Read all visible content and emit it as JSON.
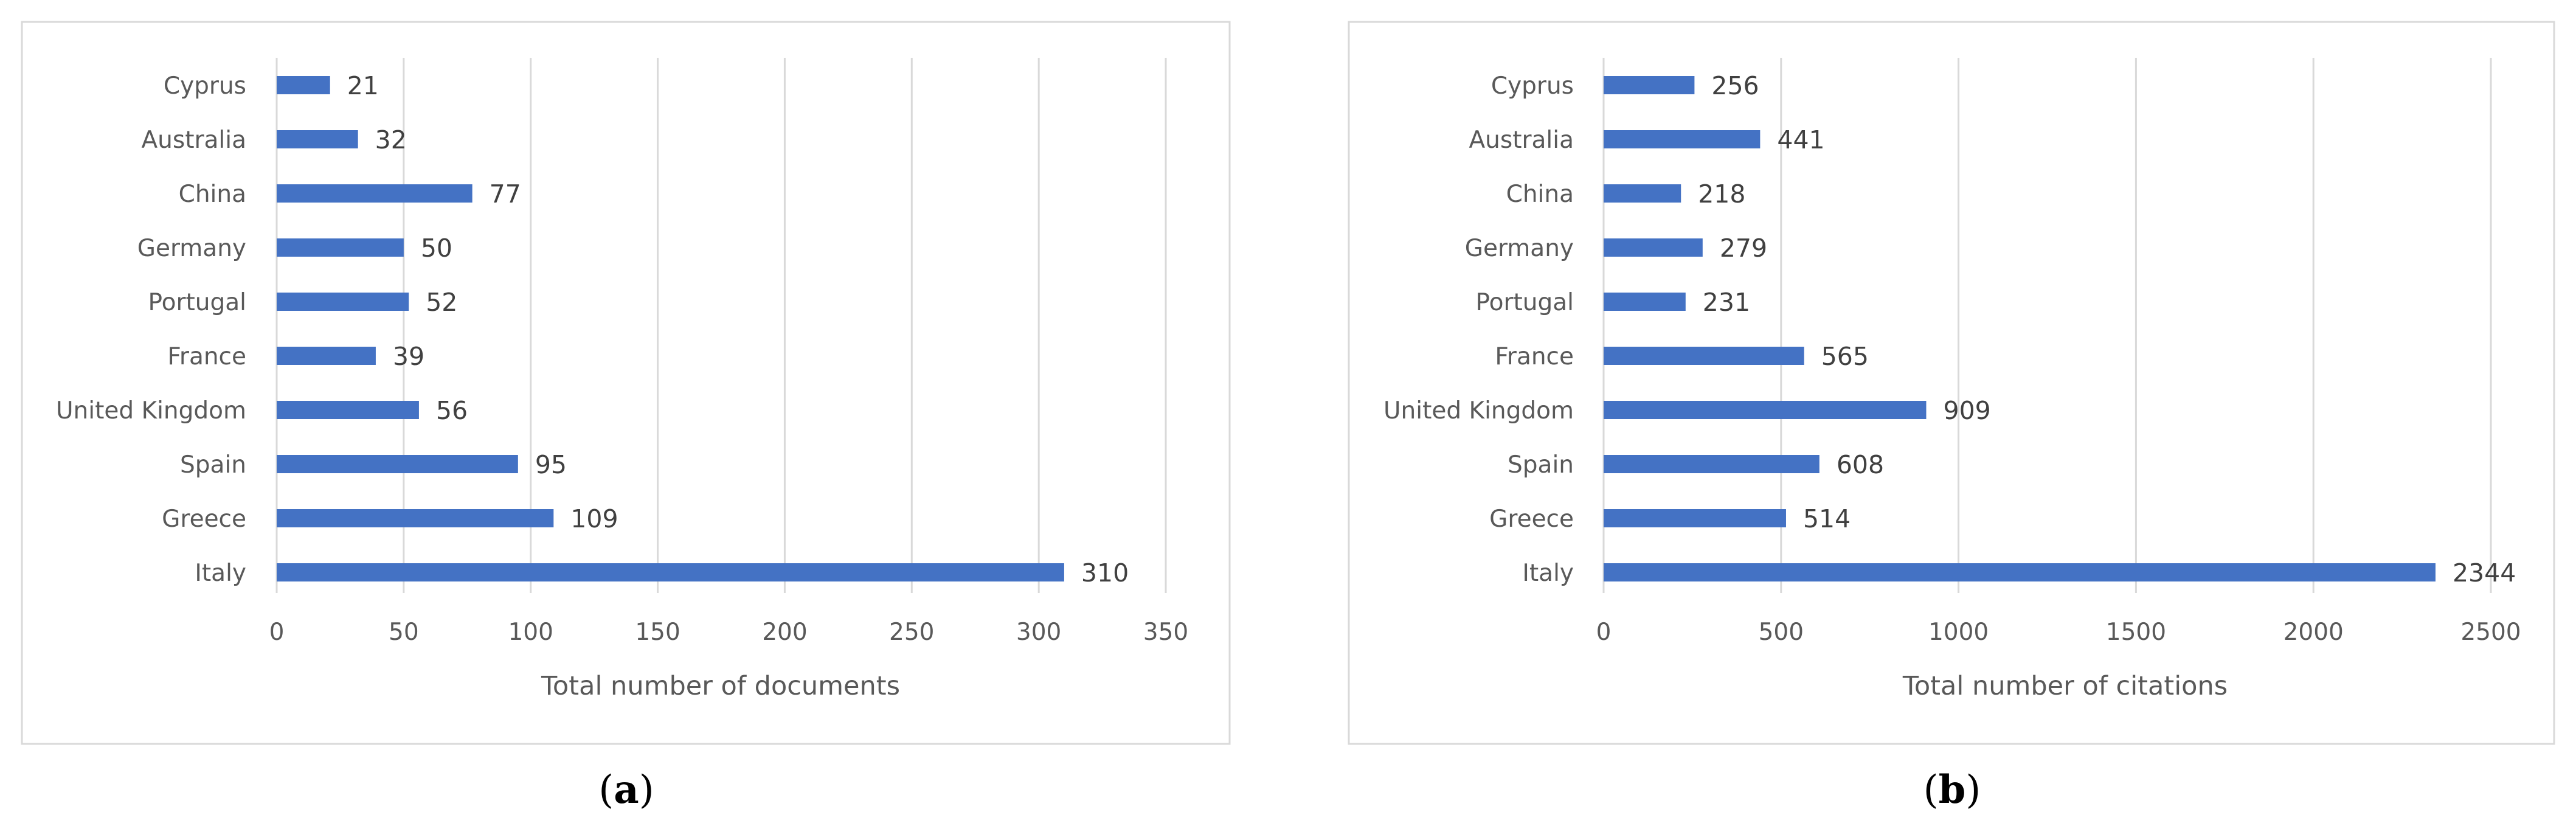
{
  "panels": [
    {
      "label_open": "(",
      "label_letter": "a",
      "label_close": ")"
    },
    {
      "label_open": "(",
      "label_letter": "b",
      "label_close": ")"
    }
  ],
  "colors": {
    "bar": "#4472C4",
    "grid": "#d9d9d9",
    "frame": "#d9d9d9"
  },
  "chart_data": [
    {
      "type": "bar",
      "orientation": "horizontal",
      "categories": [
        "Cyprus",
        "Australia",
        "China",
        "Germany",
        "Portugal",
        "France",
        "United Kingdom",
        "Spain",
        "Greece",
        "Italy"
      ],
      "values": [
        21,
        32,
        77,
        50,
        52,
        39,
        56,
        95,
        109,
        310
      ],
      "xlabel": "Total number of documents",
      "ylabel": "",
      "xlim": [
        0,
        350
      ],
      "xticks": [
        0,
        50,
        100,
        150,
        200,
        250,
        300,
        350
      ],
      "grid": "vertical",
      "data_labels": true
    },
    {
      "type": "bar",
      "orientation": "horizontal",
      "categories": [
        "Cyprus",
        "Australia",
        "China",
        "Germany",
        "Portugal",
        "France",
        "United Kingdom",
        "Spain",
        "Greece",
        "Italy"
      ],
      "values": [
        256,
        441,
        218,
        279,
        231,
        565,
        909,
        608,
        514,
        2344
      ],
      "xlabel": "Total number of citations",
      "ylabel": "",
      "xlim": [
        0,
        2500
      ],
      "xticks": [
        0,
        500,
        1000,
        1500,
        2000,
        2500
      ],
      "grid": "vertical",
      "data_labels": true
    }
  ]
}
